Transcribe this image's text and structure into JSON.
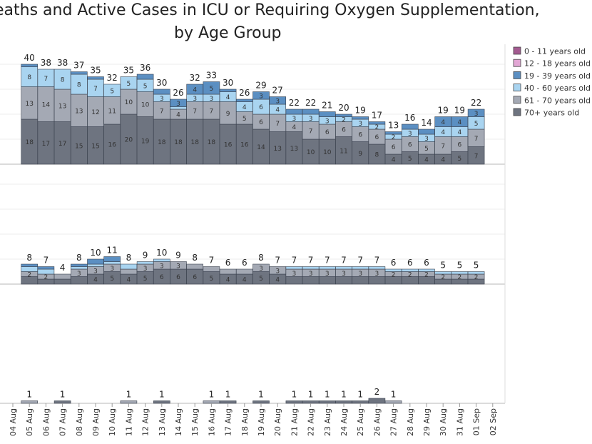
{
  "chart_data": [
    {
      "type": "bar",
      "stacked": true,
      "title_line1": "eaths and Active Cases in ICU or Requiring Oxygen Supplementation,",
      "title_line2": "by Age Group",
      "panel": "Requiring Oxygen Supplementation",
      "categories": [
        "05 Aug",
        "06 Aug",
        "07 Aug",
        "08 Aug",
        "09 Aug",
        "10 Aug",
        "11 Aug",
        "12 Aug",
        "13 Aug",
        "14 Aug",
        "15 Aug",
        "16 Aug",
        "17 Aug",
        "18 Aug",
        "19 Aug",
        "20 Aug",
        "21 Aug",
        "22 Aug",
        "23 Aug",
        "24 Aug",
        "25 Aug",
        "26 Aug",
        "27 Aug",
        "28 Aug",
        "29 Aug",
        "30 Aug",
        "31 Aug",
        "01 Sep"
      ],
      "totals": [
        40,
        38,
        38,
        37,
        35,
        32,
        35,
        36,
        30,
        26,
        32,
        33,
        30,
        26,
        29,
        27,
        22,
        22,
        21,
        20,
        19,
        17,
        13,
        16,
        14,
        19,
        19,
        22
      ],
      "series": [
        {
          "name": "70+ years old",
          "values": [
            18,
            17,
            17,
            15,
            15,
            16,
            20,
            19,
            18,
            18,
            18,
            18,
            16,
            16,
            14,
            13,
            13,
            10,
            10,
            11,
            9,
            8,
            4,
            5,
            4,
            4,
            5,
            7
          ]
        },
        {
          "name": "61 - 70 years old",
          "values": [
            13,
            14,
            13,
            13,
            12,
            11,
            10,
            10,
            7,
            4,
            7,
            7,
            9,
            5,
            6,
            7,
            4,
            7,
            6,
            6,
            6,
            6,
            6,
            6,
            5,
            7,
            6,
            7
          ]
        },
        {
          "name": "40 - 60 years old",
          "values": [
            8,
            7,
            8,
            8,
            7,
            5,
            5,
            5,
            3,
            1,
            3,
            3,
            4,
            4,
            6,
            4,
            3,
            3,
            3,
            2,
            3,
            2,
            2,
            3,
            3,
            4,
            4,
            5
          ]
        },
        {
          "name": "19 - 39 years old",
          "values": [
            1,
            0,
            0,
            1,
            1,
            0,
            0,
            2,
            2,
            3,
            4,
            5,
            1,
            1,
            3,
            3,
            2,
            2,
            2,
            1,
            1,
            1,
            1,
            2,
            2,
            4,
            4,
            3
          ]
        },
        {
          "name": "12 - 18 years old",
          "values": [
            0,
            0,
            0,
            0,
            0,
            0,
            0,
            0,
            0,
            0,
            0,
            0,
            0,
            0,
            0,
            0,
            0,
            0,
            0,
            0,
            0,
            0,
            0,
            0,
            0,
            0,
            0,
            0
          ]
        },
        {
          "name": "0 - 11 years old",
          "values": [
            0,
            0,
            0,
            0,
            0,
            0,
            0,
            0,
            0,
            0,
            0,
            0,
            0,
            0,
            0,
            0,
            0,
            0,
            0,
            0,
            0,
            0,
            0,
            0,
            0,
            0,
            0,
            0
          ]
        }
      ],
      "grid": true
    },
    {
      "type": "bar",
      "stacked": true,
      "panel": "ICU",
      "categories": [
        "05 Aug",
        "06 Aug",
        "07 Aug",
        "08 Aug",
        "09 Aug",
        "10 Aug",
        "11 Aug",
        "12 Aug",
        "13 Aug",
        "14 Aug",
        "15 Aug",
        "16 Aug",
        "17 Aug",
        "18 Aug",
        "19 Aug",
        "20 Aug",
        "21 Aug",
        "22 Aug",
        "23 Aug",
        "24 Aug",
        "25 Aug",
        "26 Aug",
        "27 Aug",
        "28 Aug",
        "29 Aug",
        "30 Aug",
        "31 Aug",
        "01 Sep"
      ],
      "totals": [
        8,
        7,
        4,
        8,
        10,
        11,
        8,
        9,
        10,
        9,
        8,
        7,
        6,
        6,
        8,
        7,
        7,
        7,
        7,
        7,
        7,
        7,
        6,
        6,
        6,
        5,
        5,
        5
      ],
      "series": [
        {
          "name": "70+ years old",
          "values": [
            3,
            2,
            2,
            3,
            4,
            5,
            4,
            5,
            6,
            6,
            6,
            5,
            4,
            4,
            5,
            4,
            3,
            3,
            3,
            3,
            3,
            3,
            3,
            3,
            3,
            2,
            2,
            2
          ]
        },
        {
          "name": "61 - 70 years old",
          "values": [
            2,
            2,
            2,
            3,
            3,
            3,
            2,
            3,
            3,
            3,
            2,
            2,
            2,
            2,
            3,
            3,
            3,
            3,
            3,
            3,
            3,
            3,
            2,
            2,
            2,
            2,
            2,
            2
          ]
        },
        {
          "name": "40 - 60 years old",
          "values": [
            2,
            2,
            0,
            1,
            1,
            1,
            2,
            1,
            1,
            0,
            0,
            0,
            0,
            0,
            0,
            0,
            1,
            1,
            1,
            1,
            1,
            1,
            1,
            1,
            1,
            1,
            1,
            1
          ]
        },
        {
          "name": "19 - 39 years old",
          "values": [
            1,
            1,
            0,
            1,
            2,
            2,
            0,
            0,
            0,
            0,
            0,
            0,
            0,
            0,
            0,
            0,
            0,
            0,
            0,
            0,
            0,
            0,
            0,
            0,
            0,
            0,
            0,
            0
          ]
        }
      ]
    },
    {
      "type": "bar",
      "stacked": true,
      "panel": "Deaths",
      "categories": [
        "05 Aug",
        "06 Aug",
        "07 Aug",
        "08 Aug",
        "09 Aug",
        "10 Aug",
        "11 Aug",
        "12 Aug",
        "13 Aug",
        "14 Aug",
        "15 Aug",
        "16 Aug",
        "17 Aug",
        "18 Aug",
        "19 Aug",
        "20 Aug",
        "21 Aug",
        "22 Aug",
        "23 Aug",
        "24 Aug",
        "25 Aug",
        "26 Aug",
        "27 Aug",
        "28 Aug",
        "29 Aug",
        "30 Aug",
        "31 Aug",
        "01 Sep"
      ],
      "totals": [
        1,
        0,
        1,
        0,
        0,
        0,
        1,
        0,
        1,
        0,
        0,
        1,
        1,
        0,
        1,
        0,
        1,
        1,
        1,
        1,
        1,
        2,
        1,
        0,
        0,
        0,
        0,
        0
      ],
      "series": [
        {
          "name": "70+ years old",
          "values": [
            0,
            0,
            1,
            0,
            0,
            0,
            0,
            0,
            1,
            0,
            0,
            0,
            1,
            0,
            1,
            0,
            1,
            1,
            1,
            1,
            1,
            2,
            0,
            0,
            0,
            0,
            0,
            0
          ]
        },
        {
          "name": "61 - 70 years old",
          "values": [
            1,
            0,
            0,
            0,
            0,
            0,
            1,
            0,
            0,
            0,
            0,
            1,
            0,
            0,
            0,
            0,
            0,
            0,
            0,
            0,
            0,
            0,
            1,
            0,
            0,
            0,
            0,
            0
          ]
        }
      ]
    }
  ],
  "x_tick_labels": [
    "04 Aug",
    "05 Aug",
    "06 Aug",
    "07 Aug",
    "08 Aug",
    "09 Aug",
    "10 Aug",
    "11 Aug",
    "12 Aug",
    "13 Aug",
    "14 Aug",
    "15 Aug",
    "16 Aug",
    "17 Aug",
    "18 Aug",
    "19 Aug",
    "20 Aug",
    "21 Aug",
    "22 Aug",
    "23 Aug",
    "24 Aug",
    "25 Aug",
    "26 Aug",
    "27 Aug",
    "28 Aug",
    "29 Aug",
    "30 Aug",
    "31 Aug",
    "01 Sep",
    "02 Sep"
  ],
  "legend": {
    "placement": "right",
    "items": [
      {
        "label": "0 - 11 years old",
        "color": "#a35a90"
      },
      {
        "label": "12 - 18 years old",
        "color": "#e2a6d4"
      },
      {
        "label": "19 - 39 years old",
        "color": "#5b8fc2"
      },
      {
        "label": "40 - 60 years old",
        "color": "#a9d4f0"
      },
      {
        "label": "61 - 70 years old",
        "color": "#a4a9b4"
      },
      {
        "label": "70+ years old",
        "color": "#6e7480"
      }
    ]
  }
}
